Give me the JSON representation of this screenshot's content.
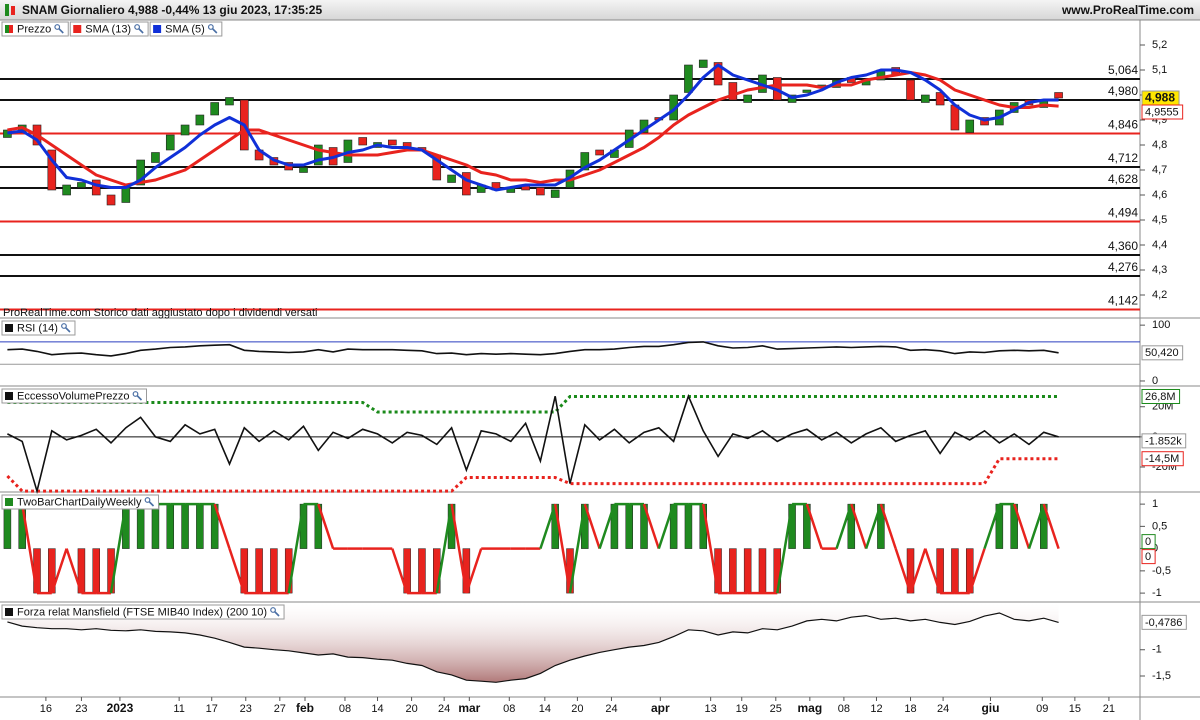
{
  "header": {
    "title": "SNAM Giornaliero 4,988 -0,44% 13 giu 2023, 17:35:25",
    "site": "www.ProRealTime.com"
  },
  "chart_data": [
    {
      "type": "candlestick",
      "name": "Prezzo",
      "up_color": "#1f8a1f",
      "down_color": "#e8231e",
      "open": [
        4.83,
        4.85,
        4.88,
        4.78,
        4.6,
        4.63,
        4.66,
        4.6,
        4.57,
        4.64,
        4.73,
        4.78,
        4.84,
        4.88,
        4.92,
        4.96,
        4.98,
        4.78,
        4.75,
        4.73,
        4.69,
        4.72,
        4.79,
        4.73,
        4.83,
        4.79,
        4.82,
        4.81,
        4.79,
        4.76,
        4.65,
        4.69,
        4.61,
        4.65,
        4.61,
        4.64,
        4.63,
        4.59,
        4.63,
        4.7,
        4.78,
        4.75,
        4.79,
        4.85,
        4.91,
        4.9,
        5.01,
        5.11,
        5.13,
        5.05,
        4.97,
        5.01,
        5.07,
        4.97,
        5.01,
        5.03,
        5.03,
        5.07,
        5.04,
        5.06,
        5.11,
        5.06,
        4.97,
        5.01,
        4.96,
        4.85,
        4.91,
        4.88,
        4.93,
        4.98,
        4.95,
        5.01
      ],
      "close": [
        4.86,
        4.88,
        4.8,
        4.62,
        4.64,
        4.65,
        4.6,
        4.56,
        4.63,
        4.74,
        4.77,
        4.84,
        4.88,
        4.92,
        4.97,
        4.99,
        4.78,
        4.74,
        4.72,
        4.7,
        4.71,
        4.8,
        4.72,
        4.82,
        4.8,
        4.81,
        4.8,
        4.79,
        4.78,
        4.66,
        4.68,
        4.6,
        4.64,
        4.62,
        4.63,
        4.62,
        4.6,
        4.62,
        4.7,
        4.77,
        4.76,
        4.78,
        4.86,
        4.9,
        4.9,
        5.0,
        5.12,
        5.14,
        5.04,
        4.98,
        5.0,
        5.08,
        4.98,
        5.0,
        5.02,
        5.04,
        5.06,
        5.05,
        5.06,
        5.1,
        5.08,
        4.98,
        5.0,
        4.96,
        4.86,
        4.9,
        4.88,
        4.94,
        4.97,
        4.96,
        4.98,
        4.988
      ],
      "last_label": "4,988",
      "last_label_color": "#ffe600",
      "series": [
        {
          "name": "SMA (13)",
          "color": "#e8231e",
          "last_label": "4,9555",
          "values": [
            4.86,
            4.87,
            4.84,
            4.8,
            4.76,
            4.72,
            4.68,
            4.66,
            4.64,
            4.65,
            4.66,
            4.68,
            4.7,
            4.74,
            4.78,
            4.82,
            4.86,
            4.86,
            4.84,
            4.82,
            4.8,
            4.78,
            4.77,
            4.76,
            4.76,
            4.76,
            4.77,
            4.78,
            4.78,
            4.76,
            4.74,
            4.72,
            4.69,
            4.68,
            4.66,
            4.66,
            4.65,
            4.66,
            4.66,
            4.68,
            4.7,
            4.73,
            4.76,
            4.79,
            4.83,
            4.88,
            4.92,
            4.95,
            4.98,
            5.0,
            5.02,
            5.03,
            5.04,
            5.04,
            5.04,
            5.03,
            5.04,
            5.04,
            5.06,
            5.07,
            5.08,
            5.09,
            5.08,
            5.06,
            5.02,
            5.0,
            4.98,
            4.96,
            4.95,
            4.95,
            4.96,
            4.9555
          ]
        },
        {
          "name": "SMA (5)",
          "color": "#1030d8",
          "values": [
            4.848,
            4.856,
            4.82,
            4.74,
            4.67,
            4.66,
            4.64,
            4.63,
            4.63,
            4.66,
            4.71,
            4.75,
            4.79,
            4.84,
            4.88,
            4.91,
            4.88,
            4.78,
            4.74,
            4.72,
            4.72,
            4.74,
            4.75,
            4.77,
            4.78,
            4.8,
            4.79,
            4.79,
            4.78,
            4.74,
            4.7,
            4.66,
            4.64,
            4.62,
            4.63,
            4.64,
            4.64,
            4.64,
            4.67,
            4.71,
            4.74,
            4.78,
            4.82,
            4.86,
            4.9,
            4.94,
            5.0,
            5.07,
            5.12,
            5.08,
            5.06,
            5.04,
            5.02,
            4.99,
            5.0,
            5.02,
            5.05,
            5.07,
            5.08,
            5.1,
            5.1,
            5.09,
            5.06,
            5.02,
            4.96,
            4.92,
            4.9,
            4.91,
            4.94,
            4.97,
            4.98,
            4.98
          ]
        }
      ],
      "levels": [
        {
          "value": 5.064,
          "label": "5,064",
          "color": "#111111"
        },
        {
          "value": 4.98,
          "label": "4,980",
          "color": "#111111"
        },
        {
          "value": 4.846,
          "label": "4,846",
          "color": "#e8231e"
        },
        {
          "value": 4.712,
          "label": "4,712",
          "color": "#111111"
        },
        {
          "value": 4.628,
          "label": "4,628",
          "color": "#111111"
        },
        {
          "value": 4.494,
          "label": "4,494",
          "color": "#e8231e"
        },
        {
          "value": 4.36,
          "label": "4,360",
          "color": "#111111"
        },
        {
          "value": 4.276,
          "label": "4,276",
          "color": "#111111"
        },
        {
          "value": 4.142,
          "label": "4,142",
          "color": "#e8231e"
        }
      ],
      "ylim": [
        4.108,
        5.3
      ],
      "yticks": [
        {
          "value": 5.2,
          "label": "5,2"
        },
        {
          "value": 5.1,
          "label": "5,1"
        },
        5,
        {
          "value": 4.9,
          "label": "4,9"
        },
        {
          "value": 4.8,
          "label": "4,8"
        },
        {
          "value": 4.7,
          "label": "4,7"
        },
        {
          "value": 4.6,
          "label": "4,6"
        },
        {
          "value": 4.5,
          "label": "4,5"
        },
        {
          "value": 4.4,
          "label": "4,4"
        },
        {
          "value": 4.3,
          "label": "4,3"
        },
        {
          "value": 4.2,
          "label": "4,2"
        }
      ],
      "xlim": [
        -0.5,
        76.5
      ],
      "xticks": [
        {
          "value": 2.6,
          "label": "16"
        },
        {
          "value": 5,
          "label": "23"
        },
        {
          "value": 7.6,
          "label": "2023"
        },
        {
          "value": 11.6,
          "label": "11"
        },
        {
          "value": 13.8,
          "label": "17"
        },
        {
          "value": 16.1,
          "label": "23"
        },
        {
          "value": 18.4,
          "label": "27"
        },
        {
          "value": 20.1,
          "label": "feb"
        },
        {
          "value": 22.8,
          "label": "08"
        },
        {
          "value": 25,
          "label": "14"
        },
        {
          "value": 27.3,
          "label": "20"
        },
        {
          "value": 29.5,
          "label": "24"
        },
        {
          "value": 31.2,
          "label": "mar"
        },
        {
          "value": 33.9,
          "label": "08"
        },
        {
          "value": 36.3,
          "label": "14"
        },
        {
          "value": 38.5,
          "label": "20"
        },
        {
          "value": 40.8,
          "label": "24"
        },
        {
          "value": 44.1,
          "label": "apr"
        },
        {
          "value": 47.5,
          "label": "13"
        },
        {
          "value": 49.6,
          "label": "19"
        },
        {
          "value": 51.9,
          "label": "25"
        },
        {
          "value": 54.2,
          "label": "mag"
        },
        {
          "value": 56.5,
          "label": "08"
        },
        {
          "value": 58.7,
          "label": "12"
        },
        {
          "value": 61,
          "label": "18"
        },
        {
          "value": 63.2,
          "label": "24"
        },
        {
          "value": 66.4,
          "label": "giu"
        },
        {
          "value": 69.9,
          "label": "09"
        },
        {
          "value": 72.1,
          "label": "15"
        },
        {
          "value": 74.4,
          "label": "21"
        }
      ],
      "note": "ProRealTime.com  Storico dati aggiustato dopo i dividendi versati"
    },
    {
      "type": "line",
      "title": "RSI (14)",
      "color": "#111111",
      "last_label": "50,420",
      "values": [
        56,
        57,
        53,
        47,
        49,
        50,
        47,
        45,
        49,
        55,
        57,
        60,
        61,
        63,
        64,
        65,
        55,
        53,
        52,
        51,
        52,
        56,
        52,
        57,
        56,
        56,
        56,
        55,
        54,
        49,
        50,
        47,
        49,
        48,
        49,
        48,
        47,
        49,
        53,
        56,
        56,
        57,
        60,
        62,
        62,
        65,
        69,
        70,
        63,
        59,
        60,
        63,
        57,
        58,
        59,
        60,
        61,
        60,
        61,
        62,
        61,
        55,
        56,
        54,
        49,
        52,
        51,
        54,
        55,
        54,
        55,
        50.42
      ],
      "levels": [
        {
          "value": 70,
          "color": "#2a3fbf"
        },
        {
          "value": 30,
          "color": "#999999"
        }
      ],
      "ylim": [
        -9,
        111
      ],
      "yticks": [
        100,
        0
      ]
    },
    {
      "type": "line",
      "title": "EccessoVolumePrezzo",
      "color": "#111111",
      "last_label": "-1.852k",
      "zero_line": true,
      "values": [
        2000000.0,
        -3000000.0,
        -36000000.0,
        4000000.0,
        -2000000.0,
        1000000.0,
        5000000.0,
        -4000000.0,
        6000000.0,
        13000000.0,
        0,
        -3000000.0,
        8000000.0,
        2000000.0,
        5000000.0,
        -18000000.0,
        6000000.0,
        -3000000.0,
        4000000.0,
        -2000000.0,
        7000000.0,
        -9000000.0,
        3000000.0,
        -1000000.0,
        5000000.0,
        2000000.0,
        -4000000.0,
        3000000.0,
        1000000.0,
        -5000000.0,
        6000000.0,
        -22000000.0,
        4000000.0,
        2000000.0,
        -3000000.0,
        9000000.0,
        -16000000.0,
        27000000.0,
        -31000000.0,
        8000000.0,
        -2000000.0,
        5000000.0,
        -4000000.0,
        3000000.0,
        6000000.0,
        -3000000.0,
        27000000.0,
        4000000.0,
        -13000000.0,
        2000000.0,
        -1000000.0,
        4000000.0,
        -3000000.0,
        2000000.0,
        5000000.0,
        -2000000.0,
        3000000.0,
        -4000000.0,
        2000000.0,
        6000000.0,
        -3000000.0,
        1000000.0,
        4000000.0,
        -11000000.0,
        3000000.0,
        -2000000.0,
        4000000.0,
        -4000000.0,
        2000000.0,
        -5000000.0,
        3000000.0,
        -1852
      ],
      "bands": [
        {
          "color": "#1a8a1a",
          "last_label": "26,8M",
          "values": [
            22800000,
            22800000,
            22800000,
            22800000,
            22800000,
            22800000,
            22800000,
            22800000,
            22800000,
            22800000,
            22800000,
            22800000,
            22800000,
            22800000,
            22800000,
            22800000,
            22800000,
            22800000,
            22800000,
            22800000,
            22800000,
            22800000,
            22800000,
            22800000,
            22800000,
            16500000,
            16500000,
            16500000,
            16500000,
            16500000,
            16500000,
            16500000,
            16500000,
            16500000,
            16500000,
            16500000,
            16500000,
            16500000,
            26800000,
            26800000,
            26800000,
            26800000,
            26800000,
            26800000,
            26800000,
            26800000,
            26800000,
            26800000,
            26800000,
            26800000,
            26800000,
            26800000,
            26800000,
            26800000,
            26800000,
            26800000,
            26800000,
            26800000,
            26800000,
            26800000,
            26800000,
            26800000,
            26800000,
            26800000,
            26800000,
            26800000,
            26800000,
            26800000,
            26800000,
            26800000,
            26800000,
            26800000
          ]
        },
        {
          "color": "#e8231e",
          "last_label": "-14,5M",
          "values": [
            -26000000,
            -36000000,
            -36000000,
            -36000000,
            -36000000,
            -36000000,
            -36000000,
            -36000000,
            -36000000,
            -36000000,
            -36000000,
            -36000000,
            -36000000,
            -36000000,
            -36000000,
            -36000000,
            -36000000,
            -36000000,
            -36000000,
            -36000000,
            -36000000,
            -36000000,
            -36000000,
            -36000000,
            -36000000,
            -36000000,
            -36000000,
            -36000000,
            -36000000,
            -36000000,
            -36000000,
            -27000000,
            -27000000,
            -27000000,
            -27000000,
            -27000000,
            -27000000,
            -27000000,
            -31000000,
            -31000000,
            -31000000,
            -31000000,
            -31000000,
            -31000000,
            -31000000,
            -31000000,
            -31000000,
            -31000000,
            -31000000,
            -31000000,
            -31000000,
            -31000000,
            -31000000,
            -31000000,
            -31000000,
            -31000000,
            -31000000,
            -31000000,
            -31000000,
            -31000000,
            -31000000,
            -31000000,
            -31000000,
            -31000000,
            -31000000,
            -31000000,
            -31000000,
            -14500000,
            -14500000,
            -14500000,
            -14500000,
            -14500000
          ]
        }
      ],
      "ylim": [
        -36600000,
        33100000
      ],
      "yticks": [
        {
          "value": 20000000,
          "label": "20M"
        },
        0,
        {
          "value": -20000000,
          "label": "-20M"
        }
      ]
    },
    {
      "type": "bar-line",
      "title": "TwoBarChartDailyWeekly",
      "up_color": "#1f8a1f",
      "down_color": "#e8231e",
      "last_up": 0,
      "last_down": 0,
      "bars": [
        1,
        1,
        -1,
        -1,
        0,
        -1,
        -1,
        -1,
        1,
        1,
        1,
        1,
        1,
        1,
        1,
        0,
        -1,
        -1,
        -1,
        -1,
        1,
        1,
        0,
        0,
        0,
        0,
        0,
        -1,
        -1,
        -1,
        1,
        -1,
        0,
        0,
        0,
        0,
        0,
        1,
        -1,
        1,
        0,
        1,
        1,
        1,
        0,
        1,
        1,
        1,
        -1,
        -1,
        -1,
        -1,
        -1,
        1,
        1,
        0,
        0,
        1,
        0,
        1,
        0,
        -1,
        0,
        -1,
        -1,
        -1,
        0,
        1,
        1,
        0,
        1,
        0
      ],
      "line": [
        1,
        1,
        -1,
        -1,
        0,
        -1,
        -1,
        -1,
        1,
        1,
        1,
        1,
        1,
        1,
        1,
        0,
        -1,
        -1,
        -1,
        -1,
        1,
        1,
        0,
        0,
        0,
        0,
        0,
        -1,
        -1,
        -1,
        1,
        -1,
        0,
        0,
        0,
        0,
        0,
        1,
        -1,
        1,
        0,
        1,
        1,
        1,
        0,
        1,
        1,
        1,
        -1,
        -1,
        -1,
        -1,
        -1,
        1,
        1,
        0,
        0,
        1,
        0,
        1,
        0,
        -1,
        0,
        -1,
        -1,
        -1,
        0,
        1,
        1,
        0,
        1,
        0
      ],
      "ylim": [
        -1.2,
        1.25
      ],
      "yticks": [
        1,
        {
          "value": 0.5,
          "label": "0,5"
        },
        0,
        {
          "value": -0.5,
          "label": "-0,5"
        },
        -1
      ]
    },
    {
      "type": "area",
      "title": "Forza relat Mansfield (FTSE MIB40 Index) (200 10)",
      "color": "#111111",
      "fill": "#a86a6a",
      "last_label": "-0,4786",
      "values": [
        -0.47,
        -0.55,
        -0.58,
        -0.6,
        -0.6,
        -0.62,
        -0.6,
        -0.63,
        -0.64,
        -0.62,
        -0.65,
        -0.66,
        -0.68,
        -0.72,
        -0.78,
        -0.86,
        -0.95,
        -0.97,
        -1.0,
        -1.02,
        -1.06,
        -1.1,
        -1.08,
        -1.14,
        -1.15,
        -1.18,
        -1.2,
        -1.26,
        -1.3,
        -1.42,
        -1.48,
        -1.58,
        -1.6,
        -1.62,
        -1.58,
        -1.55,
        -1.45,
        -1.3,
        -1.2,
        -1.12,
        -1.05,
        -1.0,
        -0.95,
        -0.92,
        -0.86,
        -0.75,
        -0.62,
        -0.64,
        -0.72,
        -0.66,
        -0.68,
        -0.6,
        -0.62,
        -0.55,
        -0.45,
        -0.42,
        -0.45,
        -0.38,
        -0.35,
        -0.42,
        -0.4,
        -0.45,
        -0.42,
        -0.48,
        -0.52,
        -0.46,
        -0.36,
        -0.3,
        -0.42,
        -0.45,
        -0.4,
        -0.4786
      ],
      "ylim": [
        -1.9,
        -0.11
      ],
      "yticks": [
        -1,
        {
          "value": -1.5,
          "label": "-1,5"
        }
      ]
    }
  ]
}
